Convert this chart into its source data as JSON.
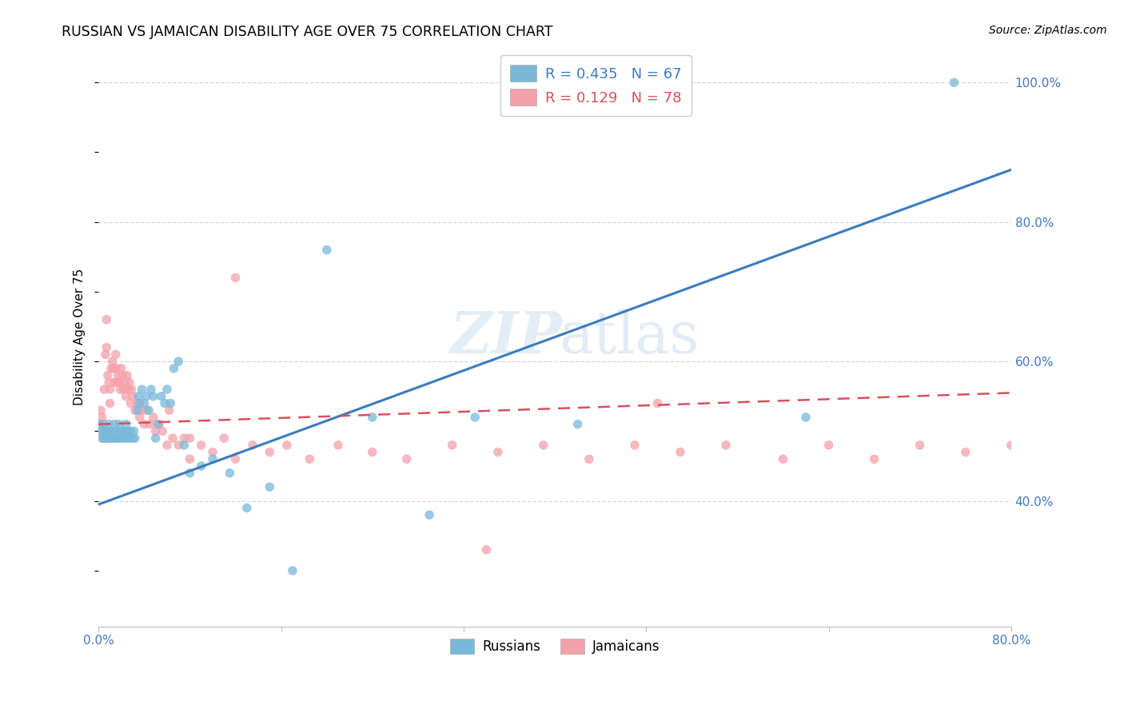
{
  "title": "RUSSIAN VS JAMAICAN DISABILITY AGE OVER 75 CORRELATION CHART",
  "source": "Source: ZipAtlas.com",
  "ylabel": "Disability Age Over 75",
  "xlim": [
    0.0,
    0.8
  ],
  "ylim": [
    0.22,
    1.05
  ],
  "y_ticks_right": [
    0.4,
    0.6,
    0.8,
    1.0
  ],
  "y_tick_labels_right": [
    "40.0%",
    "60.0%",
    "80.0%",
    "100.0%"
  ],
  "russian_R": 0.435,
  "russian_N": 67,
  "jamaican_R": 0.129,
  "jamaican_N": 78,
  "blue_color": "#7ab8d9",
  "pink_color": "#f4a0aa",
  "blue_line_color": "#3a7bbf",
  "pink_line_color": "#d94f5a",
  "grid_color": "#d0d8e8",
  "text_color": "#4477bb",
  "russians_x": [
    0.001,
    0.002,
    0.003,
    0.004,
    0.005,
    0.005,
    0.006,
    0.007,
    0.007,
    0.008,
    0.009,
    0.01,
    0.01,
    0.011,
    0.012,
    0.013,
    0.014,
    0.015,
    0.015,
    0.016,
    0.017,
    0.018,
    0.019,
    0.02,
    0.021,
    0.022,
    0.023,
    0.024,
    0.025,
    0.026,
    0.027,
    0.028,
    0.03,
    0.031,
    0.032,
    0.034,
    0.035,
    0.036,
    0.038,
    0.04,
    0.042,
    0.044,
    0.046,
    0.048,
    0.05,
    0.052,
    0.055,
    0.058,
    0.06,
    0.063,
    0.066,
    0.07,
    0.075,
    0.08,
    0.09,
    0.1,
    0.115,
    0.13,
    0.15,
    0.17,
    0.2,
    0.24,
    0.29,
    0.33,
    0.42,
    0.62,
    0.75
  ],
  "russians_y": [
    0.51,
    0.5,
    0.49,
    0.5,
    0.49,
    0.51,
    0.5,
    0.49,
    0.5,
    0.49,
    0.51,
    0.49,
    0.5,
    0.49,
    0.5,
    0.49,
    0.51,
    0.49,
    0.5,
    0.49,
    0.49,
    0.51,
    0.5,
    0.49,
    0.5,
    0.49,
    0.5,
    0.51,
    0.49,
    0.5,
    0.49,
    0.5,
    0.49,
    0.5,
    0.49,
    0.53,
    0.55,
    0.54,
    0.56,
    0.54,
    0.55,
    0.53,
    0.56,
    0.55,
    0.49,
    0.51,
    0.55,
    0.54,
    0.56,
    0.54,
    0.59,
    0.6,
    0.48,
    0.44,
    0.45,
    0.46,
    0.44,
    0.39,
    0.42,
    0.3,
    0.76,
    0.52,
    0.38,
    0.52,
    0.51,
    0.52,
    1.0
  ],
  "jamaicans_x": [
    0.001,
    0.002,
    0.003,
    0.004,
    0.005,
    0.006,
    0.007,
    0.007,
    0.008,
    0.009,
    0.01,
    0.01,
    0.011,
    0.012,
    0.013,
    0.014,
    0.015,
    0.016,
    0.016,
    0.017,
    0.018,
    0.019,
    0.02,
    0.021,
    0.022,
    0.023,
    0.024,
    0.025,
    0.026,
    0.027,
    0.028,
    0.029,
    0.03,
    0.032,
    0.034,
    0.036,
    0.038,
    0.04,
    0.042,
    0.045,
    0.048,
    0.05,
    0.053,
    0.056,
    0.06,
    0.065,
    0.07,
    0.075,
    0.08,
    0.09,
    0.1,
    0.11,
    0.12,
    0.135,
    0.15,
    0.165,
    0.185,
    0.21,
    0.24,
    0.27,
    0.31,
    0.35,
    0.39,
    0.43,
    0.47,
    0.51,
    0.55,
    0.6,
    0.64,
    0.68,
    0.72,
    0.76,
    0.8,
    0.34,
    0.49,
    0.12,
    0.08,
    0.062
  ],
  "jamaicans_y": [
    0.51,
    0.53,
    0.52,
    0.49,
    0.56,
    0.61,
    0.62,
    0.66,
    0.58,
    0.57,
    0.56,
    0.54,
    0.59,
    0.6,
    0.59,
    0.57,
    0.61,
    0.59,
    0.57,
    0.58,
    0.57,
    0.56,
    0.59,
    0.58,
    0.56,
    0.57,
    0.55,
    0.58,
    0.56,
    0.57,
    0.54,
    0.56,
    0.55,
    0.53,
    0.54,
    0.52,
    0.53,
    0.51,
    0.53,
    0.51,
    0.52,
    0.5,
    0.51,
    0.5,
    0.48,
    0.49,
    0.48,
    0.49,
    0.46,
    0.48,
    0.47,
    0.49,
    0.46,
    0.48,
    0.47,
    0.48,
    0.46,
    0.48,
    0.47,
    0.46,
    0.48,
    0.47,
    0.48,
    0.46,
    0.48,
    0.47,
    0.48,
    0.46,
    0.48,
    0.46,
    0.48,
    0.47,
    0.48,
    0.33,
    0.54,
    0.72,
    0.49,
    0.53
  ],
  "russian_line_x": [
    0.0,
    0.8
  ],
  "russian_line_y": [
    0.395,
    0.875
  ],
  "jamaican_line_x": [
    0.0,
    0.8
  ],
  "jamaican_line_y": [
    0.51,
    0.555
  ]
}
